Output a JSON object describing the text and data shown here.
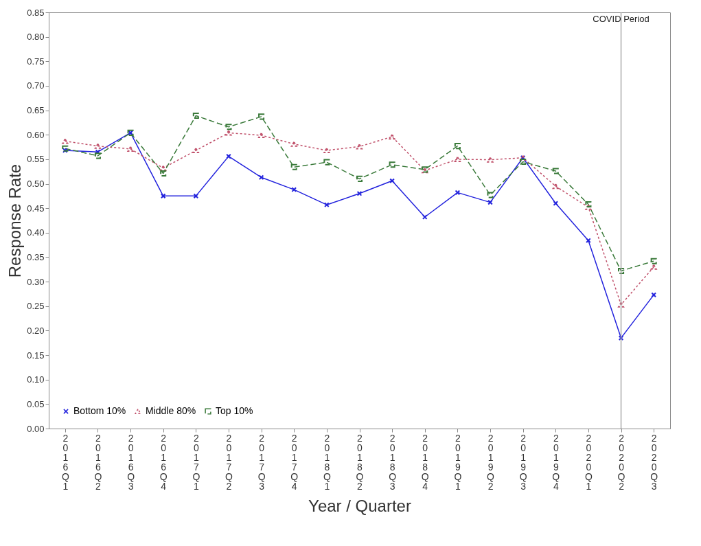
{
  "chart_data": {
    "type": "line",
    "xlabel": "Year / Quarter",
    "ylabel": "Response Rate",
    "categories": [
      "2016Q1",
      "2016Q2",
      "2016Q3",
      "2016Q4",
      "2017Q1",
      "2017Q2",
      "2017Q3",
      "2017Q4",
      "2018Q1",
      "2018Q2",
      "2018Q3",
      "2018Q4",
      "2019Q1",
      "2019Q2",
      "2019Q3",
      "2019Q4",
      "2020Q1",
      "2020Q2",
      "2020Q3"
    ],
    "series": [
      {
        "name": "Bottom 10%",
        "color": "#2222dd",
        "marker": "cross",
        "line_style": "solid",
        "values": [
          0.568,
          0.565,
          0.604,
          0.475,
          0.475,
          0.556,
          0.513,
          0.488,
          0.457,
          0.48,
          0.506,
          0.432,
          0.482,
          0.462,
          0.553,
          0.46,
          0.384,
          0.185,
          0.273
        ]
      },
      {
        "name": "Middle 80%",
        "color": "#c0506a",
        "marker": "triangle",
        "line_style": "dotted",
        "values": [
          0.587,
          0.577,
          0.571,
          0.532,
          0.568,
          0.604,
          0.599,
          0.581,
          0.568,
          0.576,
          0.596,
          0.527,
          0.55,
          0.549,
          0.553,
          0.495,
          0.452,
          0.253,
          0.33
        ]
      },
      {
        "name": "Top 10%",
        "color": "#3a7a3a",
        "marker": "square",
        "line_style": "dashed",
        "values": [
          0.572,
          0.557,
          0.604,
          0.521,
          0.639,
          0.616,
          0.637,
          0.534,
          0.544,
          0.51,
          0.539,
          0.529,
          0.577,
          0.477,
          0.545,
          0.526,
          0.458,
          0.322,
          0.342
        ]
      }
    ],
    "ylim": [
      0,
      0.85
    ],
    "yticks": [
      {
        "value": 0,
        "label": "0.00"
      },
      0.05,
      {
        "value": 0.1,
        "label": "0.10"
      },
      0.15,
      {
        "value": 0.2,
        "label": "0.20"
      },
      0.25,
      {
        "value": 0.3,
        "label": "0.30"
      },
      0.35,
      {
        "value": 0.4,
        "label": "0.40"
      },
      0.45,
      {
        "value": 0.5,
        "label": "0.50"
      },
      0.55,
      {
        "value": 0.6,
        "label": "0.60"
      },
      0.65,
      {
        "value": 0.7,
        "label": "0.70"
      },
      0.75,
      {
        "value": 0.8,
        "label": "0.80"
      },
      0.85
    ],
    "ref_lines": [
      {
        "axis": "x",
        "value": "2020Q2",
        "label": "COVID Period",
        "color": "#aaaaaa"
      }
    ],
    "grid": false,
    "legend": "bottom left"
  }
}
